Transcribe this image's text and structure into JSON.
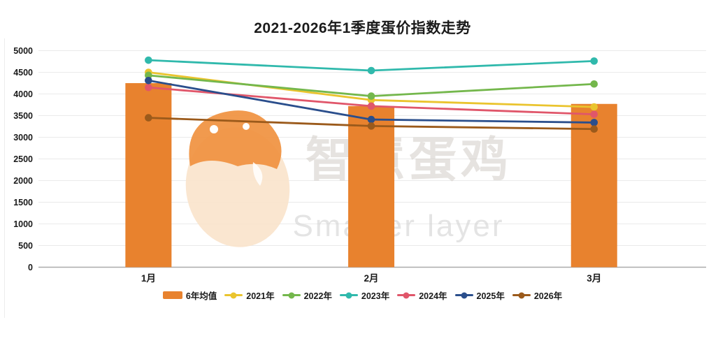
{
  "watermark": {
    "cn": "智慧蛋鸡",
    "en": "Smarter layer",
    "logo_body_color": "#FAE3CB",
    "logo_head_color": "#F0913F"
  },
  "axis": {
    "grid_color": "#EAEAEA",
    "zero_line_color": "#ABABAB",
    "tick_text_color": "#1a1a1a"
  },
  "chart_data": {
    "type": "combo-bar-line",
    "title": "2021-2026年1季度蛋价指数走势",
    "xlabel": "",
    "ylabel": "",
    "categories": [
      "1月",
      "2月",
      "3月"
    ],
    "ylim": [
      0,
      5000
    ],
    "ytick_step": 500,
    "yticks": [
      0,
      500,
      1000,
      1500,
      2000,
      2500,
      3000,
      3500,
      4000,
      4500,
      5000
    ],
    "grid": true,
    "legend_position": "bottom",
    "series": [
      {
        "name": "6年均值",
        "kind": "bar",
        "color": "#E8822E",
        "values": [
          4250,
          3720,
          3770
        ]
      },
      {
        "name": "2021年",
        "kind": "line",
        "color": "#EAC42E",
        "values": [
          4500,
          3860,
          3700
        ]
      },
      {
        "name": "2022年",
        "kind": "line",
        "color": "#74B74C",
        "values": [
          4430,
          3950,
          4230
        ]
      },
      {
        "name": "2023年",
        "kind": "line",
        "color": "#30B9AC",
        "values": [
          4780,
          4540,
          4760
        ]
      },
      {
        "name": "2024年",
        "kind": "line",
        "color": "#E0566A",
        "values": [
          4150,
          3720,
          3530
        ]
      },
      {
        "name": "2025年",
        "kind": "line",
        "color": "#2A4E8C",
        "values": [
          4310,
          3410,
          3340
        ]
      },
      {
        "name": "2026年",
        "kind": "line",
        "color": "#9B5A1B",
        "values": [
          3450,
          3260,
          3190
        ]
      }
    ]
  }
}
